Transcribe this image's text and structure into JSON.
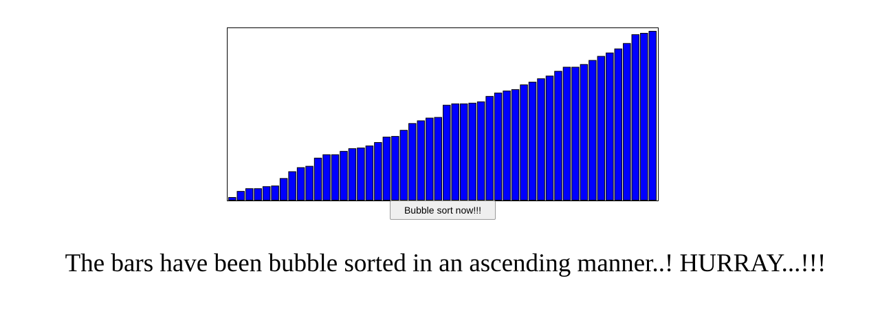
{
  "button": {
    "label": "Bubble sort now!!!"
  },
  "message": {
    "text": "The bars have been bubble sorted in an ascending manner..! HURRAY...!!!"
  },
  "colors": {
    "bar_fill": "#0000ff",
    "bar_stroke": "#000000",
    "frame_border": "#000000",
    "background": "#ffffff"
  },
  "chart_data": {
    "type": "bar",
    "order": "ascending",
    "ylim": [
      0,
      250
    ],
    "values": [
      4,
      13,
      17,
      17,
      20,
      21,
      32,
      42,
      48,
      50,
      62,
      67,
      67,
      72,
      76,
      77,
      80,
      85,
      93,
      94,
      103,
      113,
      117,
      121,
      122,
      140,
      142,
      142,
      143,
      145,
      153,
      158,
      161,
      163,
      170,
      174,
      179,
      183,
      190,
      196,
      196,
      200,
      206,
      212,
      217,
      223,
      231,
      244,
      246,
      249
    ]
  }
}
